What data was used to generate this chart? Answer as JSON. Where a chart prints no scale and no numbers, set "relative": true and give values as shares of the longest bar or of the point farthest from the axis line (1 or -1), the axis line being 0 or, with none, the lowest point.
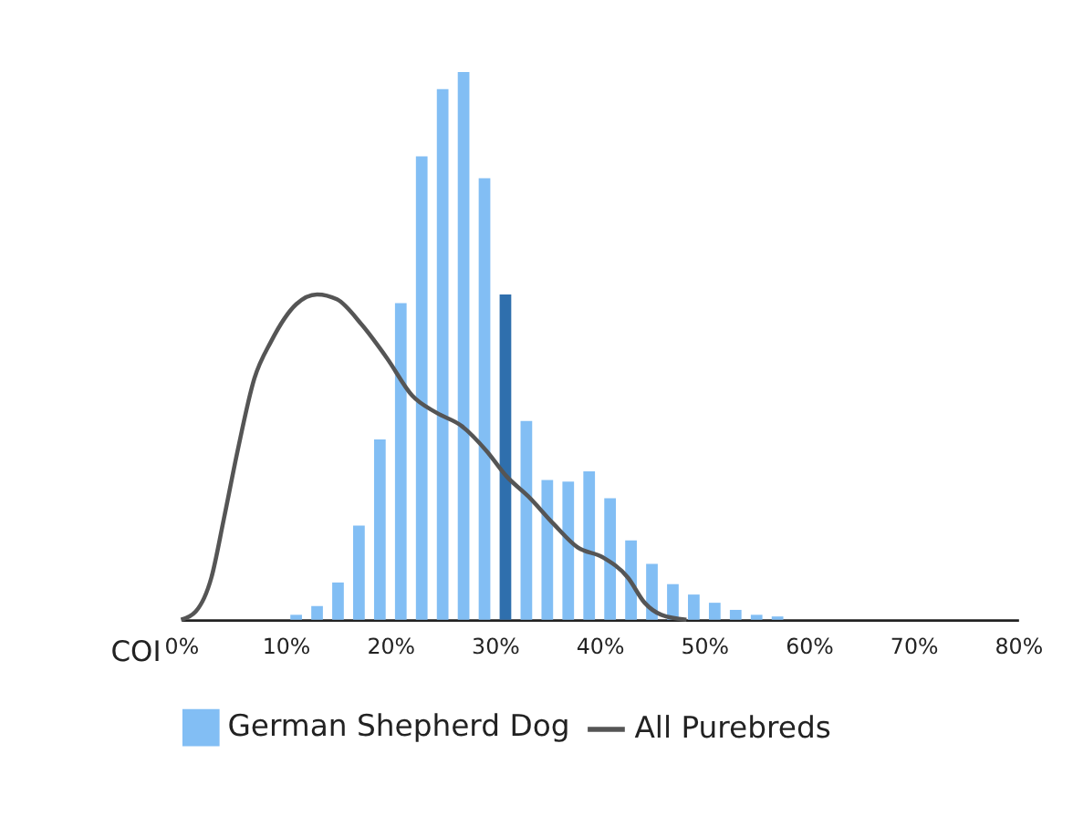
{
  "chart_data": {
    "type": "bar",
    "relative": true,
    "xlabel": "COI",
    "xlim": [
      0,
      80
    ],
    "xticks": [
      {
        "value": 0,
        "label": "0%"
      },
      {
        "value": 10,
        "label": "10%"
      },
      {
        "value": 20,
        "label": "20%"
      },
      {
        "value": 30,
        "label": "30%"
      },
      {
        "value": 40,
        "label": "40%"
      },
      {
        "value": 50,
        "label": "50%"
      },
      {
        "value": 60,
        "label": "60%"
      },
      {
        "value": 70,
        "label": "70%"
      },
      {
        "value": 80,
        "label": "80%"
      }
    ],
    "legend": "bottom",
    "grid": false,
    "series": [
      {
        "name": "German Shepherd Dog",
        "color": "#82bef4",
        "x": [
          11,
          13,
          15,
          17,
          19,
          21,
          23,
          25,
          27,
          29,
          31,
          33,
          35,
          37,
          39,
          41,
          43,
          45,
          47,
          49,
          51,
          53,
          55,
          57
        ],
        "values": [
          0.009,
          0.025,
          0.068,
          0.172,
          0.329,
          0.578,
          0.846,
          0.969,
          1,
          0.806,
          0.594,
          0.363,
          0.255,
          0.252,
          0.271,
          0.222,
          0.145,
          0.102,
          0.065,
          0.046,
          0.031,
          0.018,
          0.009,
          0.006
        ],
        "colors": [
          "#82bef4",
          "#82bef4",
          "#82bef4",
          "#82bef4",
          "#82bef4",
          "#82bef4",
          "#82bef4",
          "#82bef4",
          "#82bef4",
          "#82bef4",
          "#2f6fad",
          "#82bef4",
          "#82bef4",
          "#82bef4",
          "#82bef4",
          "#82bef4",
          "#82bef4",
          "#82bef4",
          "#82bef4",
          "#82bef4",
          "#82bef4",
          "#82bef4",
          "#82bef4",
          "#82bef4"
        ]
      },
      {
        "name": "All Purebreds",
        "type": "line",
        "color": "#555555",
        "line_style": "solid",
        "marker": "none",
        "x": [
          0,
          1.4,
          2.9,
          4.1,
          5.4,
          7,
          8.6,
          11,
          13,
          14.9,
          17.3,
          19.7,
          22.1,
          24.4,
          26.8,
          29.2,
          31.1,
          33.2,
          35.6,
          37.9,
          40.3,
          42.7,
          44.3,
          45.9,
          48.3
        ],
        "values": [
          0,
          0.015,
          0.077,
          0.185,
          0.308,
          0.44,
          0.508,
          0.576,
          0.594,
          0.585,
          0.538,
          0.477,
          0.409,
          0.378,
          0.354,
          0.308,
          0.262,
          0.225,
          0.175,
          0.132,
          0.114,
          0.077,
          0.031,
          0.009,
          0
        ]
      }
    ]
  }
}
